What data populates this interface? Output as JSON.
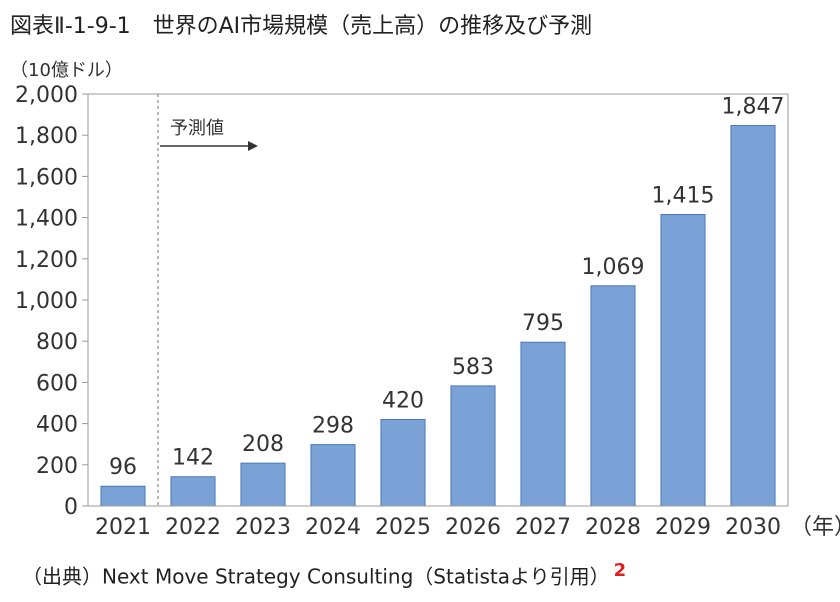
{
  "title": "図表Ⅱ-1-9-1　世界のAI市場規模（売上高）の推移及び予測",
  "source": "（出典）Next Move Strategy Consulting（Statistaより引用）",
  "source_ref": "2",
  "colors": {
    "bar_fill": "#7aa2d6",
    "bar_stroke": "#4a78b8",
    "ref": "#e02020"
  },
  "chart_data": {
    "type": "bar",
    "title": "",
    "ylabel": "（10億ドル）",
    "xlabel": "（年）",
    "ylim": [
      0,
      2000
    ],
    "yticks": [
      0,
      200,
      400,
      600,
      800,
      1000,
      1200,
      1400,
      1600,
      1800,
      2000
    ],
    "ytick_labels": [
      "0",
      "200",
      "400",
      "600",
      "800",
      "1,000",
      "1,200",
      "1,400",
      "1,600",
      "1,800",
      "2,000"
    ],
    "categories": [
      "2021",
      "2022",
      "2023",
      "2024",
      "2025",
      "2026",
      "2027",
      "2028",
      "2029",
      "2030"
    ],
    "values": [
      96,
      142,
      208,
      298,
      420,
      583,
      795,
      1069,
      1415,
      1847
    ],
    "value_labels": [
      "96",
      "142",
      "208",
      "298",
      "420",
      "583",
      "795",
      "1,069",
      "1,415",
      "1,847"
    ],
    "annotation": {
      "text": "予測値",
      "from_category": "2022"
    },
    "grid": false
  }
}
